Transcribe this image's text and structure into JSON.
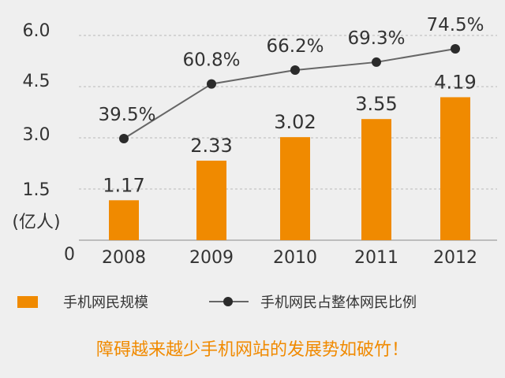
{
  "chart_data": {
    "type": "bar",
    "categories": [
      "2008",
      "2009",
      "2010",
      "2011",
      "2012"
    ],
    "series": [
      {
        "name": "手机网民规模",
        "type": "bar",
        "values": [
          1.17,
          2.33,
          3.02,
          3.55,
          4.19
        ],
        "labels": [
          "1.17",
          "2.33",
          "3.02",
          "3.55",
          "4.19"
        ]
      },
      {
        "name": "手机网民占整体网民比例",
        "type": "line",
        "values": [
          39.5,
          60.8,
          66.2,
          69.3,
          74.5
        ],
        "labels": [
          "39.5%",
          "60.8%",
          "66.2%",
          "69.3%",
          "74.5%"
        ]
      }
    ],
    "yticks": [
      "0",
      "1.5",
      "3.0",
      "4.5",
      "6.0"
    ],
    "ylabel": "(亿人)",
    "ylim": [
      0,
      6.0
    ],
    "grid": "dashed horizontal",
    "legend_position": "bottom",
    "colors": {
      "bar": "#f08a00",
      "line": "#666666",
      "marker": "#2b2b2b"
    }
  },
  "caption": "障碍越来越少手机网站的发展势如破竹！",
  "caption_color": "#f08a00"
}
